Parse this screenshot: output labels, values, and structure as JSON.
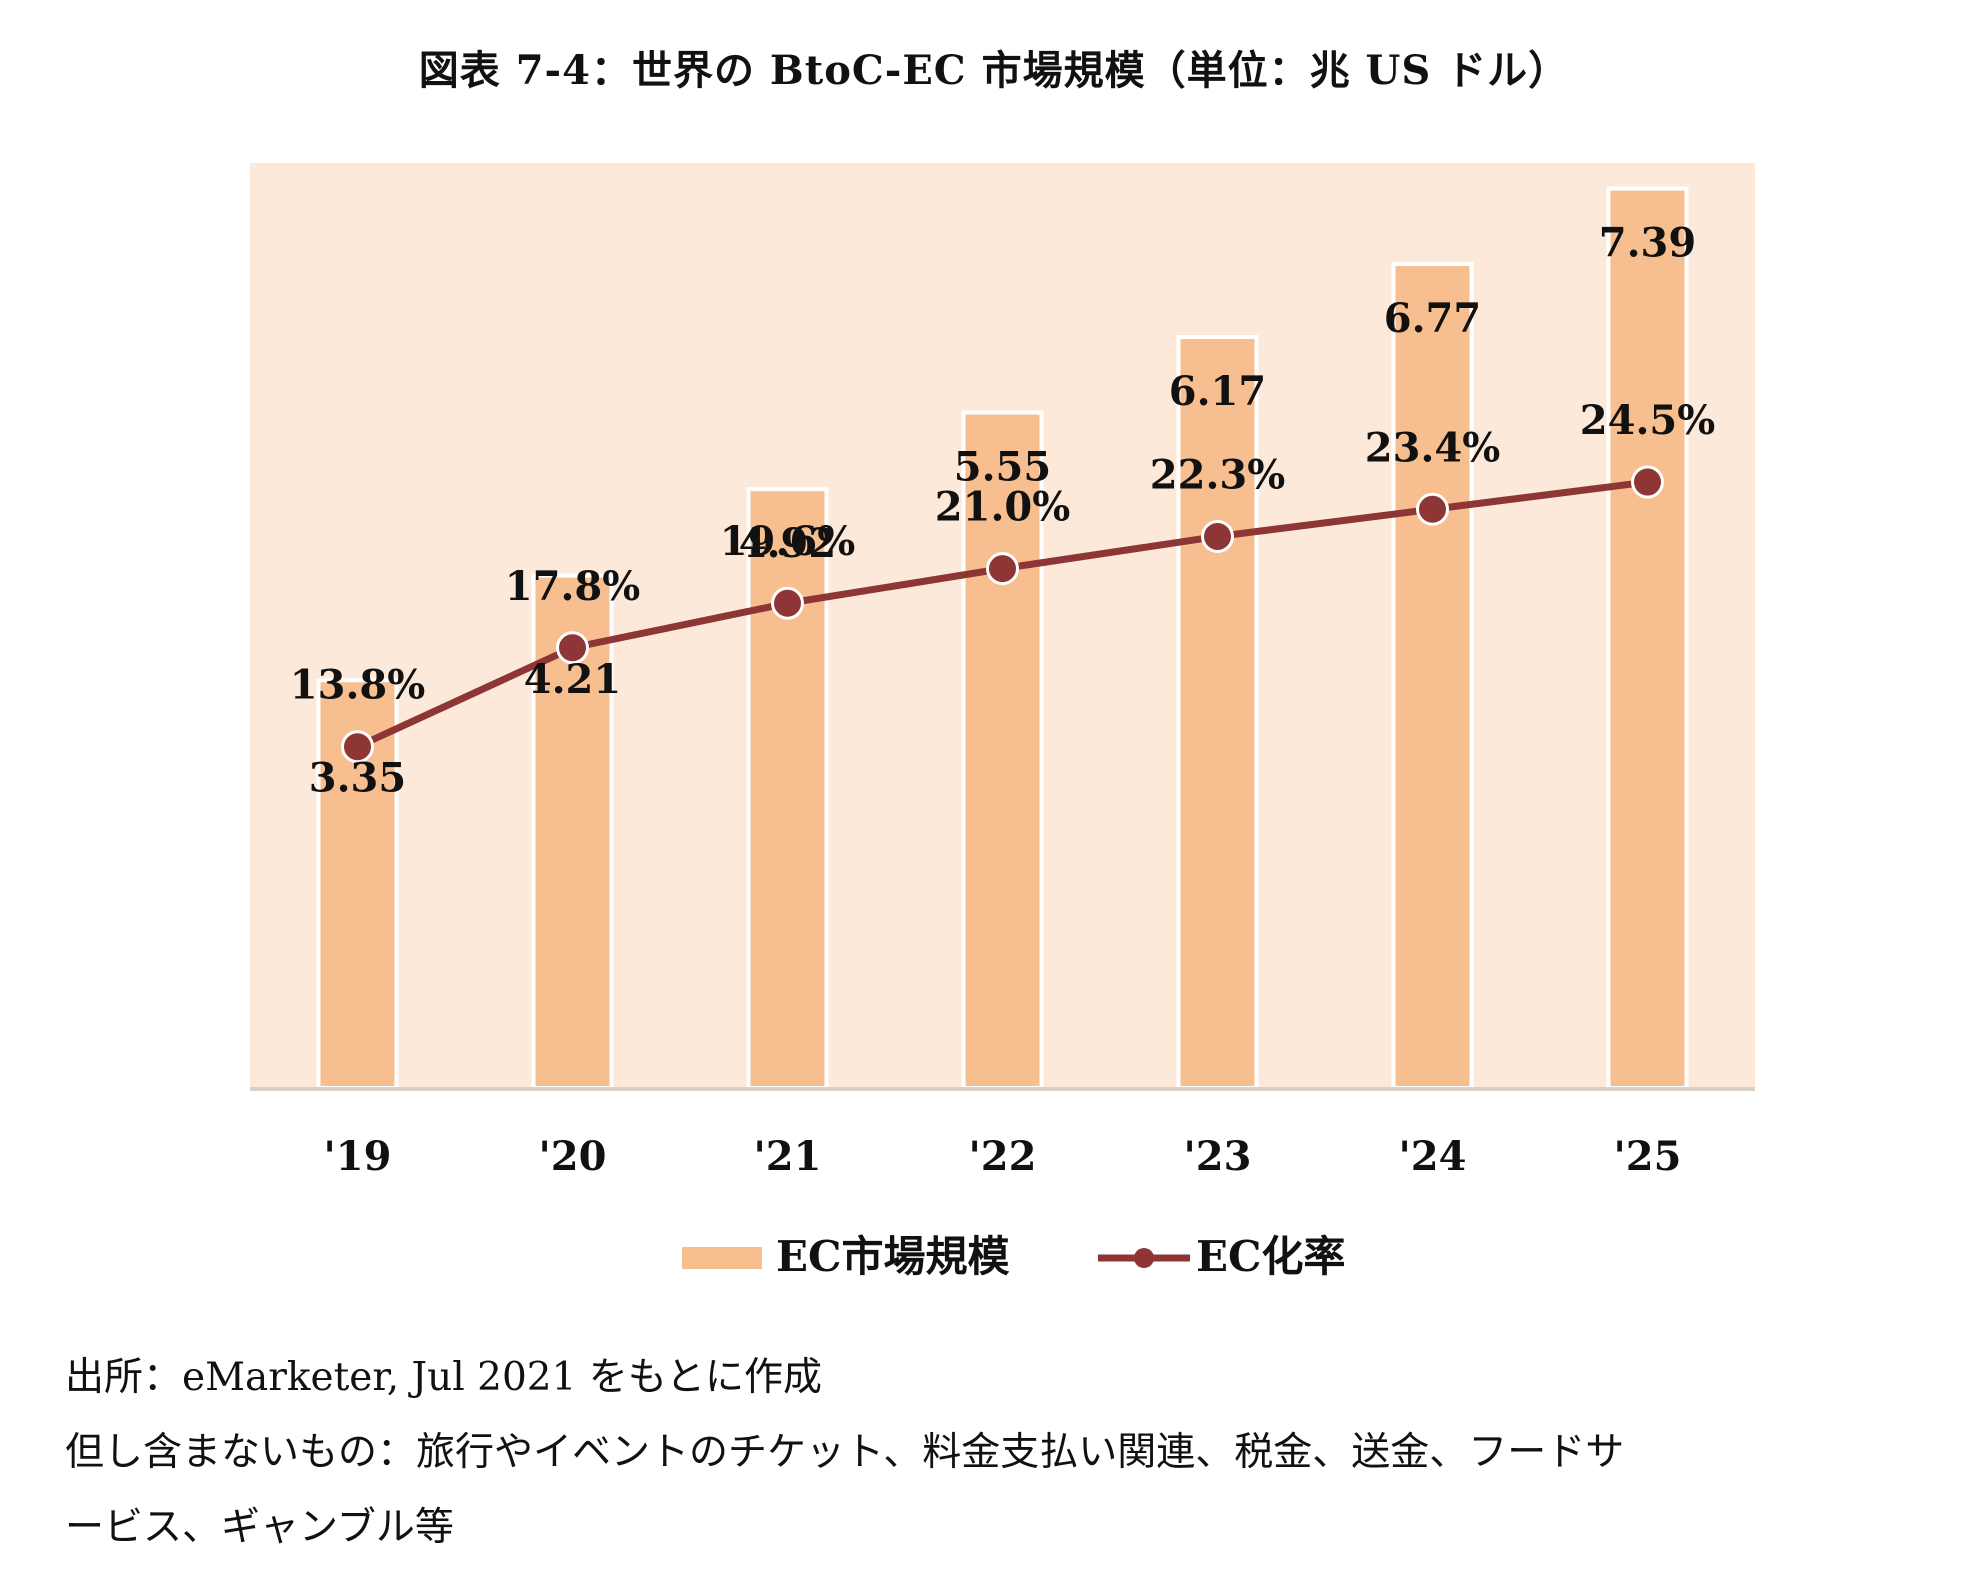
{
  "title": "図表 7-4：世界の BtoC-EC 市場規模（単位：兆 US ドル）",
  "chart_data": {
    "type": "bar",
    "categories": [
      "'19",
      "'20",
      "'21",
      "'22",
      "'23",
      "'24",
      "'25"
    ],
    "series": [
      {
        "name": "EC市場規模",
        "type": "bar",
        "values": [
          3.35,
          4.21,
          4.92,
          5.55,
          6.17,
          6.77,
          7.39
        ],
        "labels": [
          "3.35",
          "4.21",
          "4.92",
          "5.55",
          "6.17",
          "6.77",
          "7.39"
        ],
        "color": "#F7BF90"
      },
      {
        "name": "EC化率",
        "type": "line",
        "values": [
          13.8,
          17.8,
          19.6,
          21.0,
          22.3,
          23.4,
          24.5
        ],
        "labels": [
          "13.8%",
          "17.8%",
          "19.6%",
          "21.0%",
          "22.3%",
          "23.4%",
          "24.5%"
        ],
        "color": "#8E3535"
      }
    ],
    "legend_position": "bottom",
    "grid": false,
    "plot_background": "#FCE9DA"
  },
  "notes": {
    "source": "出所：eMarketer, Jul 2021 をもとに作成",
    "exclusion_line1": "但し含まないもの：旅行やイベントのチケット、料金支払い関連、税金、送金、フードサ",
    "exclusion_line2": "ービス、ギャンブル等"
  }
}
